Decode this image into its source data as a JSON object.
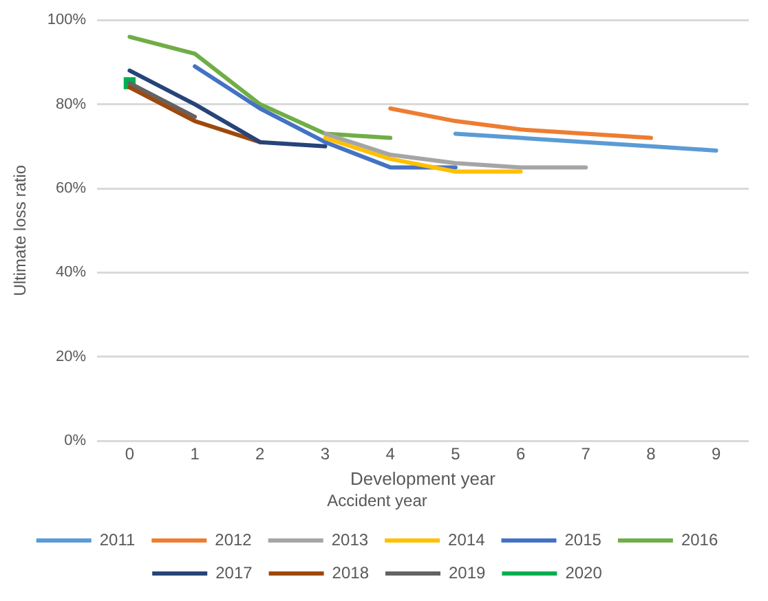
{
  "chart_data": {
    "type": "line",
    "xlabel": "Development year",
    "ylabel": "Ultimate loss ratio",
    "legend_title": "Accident year",
    "legend": "bottom",
    "grid": "y",
    "marker": "none",
    "line_style": "solid",
    "xlim": [
      -0.5,
      9.5
    ],
    "xticks": [
      0,
      1,
      2,
      3,
      4,
      5,
      6,
      7,
      8,
      9
    ],
    "ylim": [
      0,
      100
    ],
    "yticks": [
      {
        "value": 0,
        "label": "0%"
      },
      {
        "value": 20,
        "label": "20%"
      },
      {
        "value": 40,
        "label": "40%"
      },
      {
        "value": 60,
        "label": "60%"
      },
      {
        "value": 80,
        "label": "80%"
      },
      {
        "value": 100,
        "label": "100%"
      }
    ],
    "series": [
      {
        "name": "2011",
        "color": "#5b9bd5",
        "x": [
          5,
          6,
          7,
          8,
          9
        ],
        "values": [
          73,
          72,
          71,
          70,
          69
        ]
      },
      {
        "name": "2012",
        "color": "#ed7d31",
        "x": [
          4,
          5,
          6,
          7,
          8
        ],
        "values": [
          79,
          76,
          74,
          73,
          72
        ]
      },
      {
        "name": "2013",
        "color": "#a5a5a5",
        "x": [
          3,
          4,
          5,
          6,
          7
        ],
        "values": [
          73,
          68,
          66,
          65,
          65
        ]
      },
      {
        "name": "2014",
        "color": "#ffc000",
        "x": [
          3,
          4,
          5,
          6
        ],
        "values": [
          72,
          67,
          64,
          64
        ]
      },
      {
        "name": "2015",
        "color": "#4472c4",
        "x": [
          1,
          2,
          3,
          4,
          5
        ],
        "values": [
          89,
          79,
          71,
          65,
          65
        ]
      },
      {
        "name": "2016",
        "color": "#70ad47",
        "x": [
          0,
          1,
          2,
          3,
          4
        ],
        "values": [
          96,
          92,
          80,
          73,
          72
        ]
      },
      {
        "name": "2017",
        "color": "#264478",
        "x": [
          0,
          1,
          2,
          3
        ],
        "values": [
          88,
          80,
          71,
          70
        ]
      },
      {
        "name": "2018",
        "color": "#9e480e",
        "x": [
          0,
          1,
          2
        ],
        "values": [
          84,
          76,
          71
        ]
      },
      {
        "name": "2019",
        "color": "#636363",
        "x": [
          0,
          1
        ],
        "values": [
          85,
          77
        ]
      },
      {
        "name": "2020",
        "color": "#00b050",
        "x": [
          0
        ],
        "values": [
          85
        ],
        "marker": "square"
      }
    ]
  }
}
